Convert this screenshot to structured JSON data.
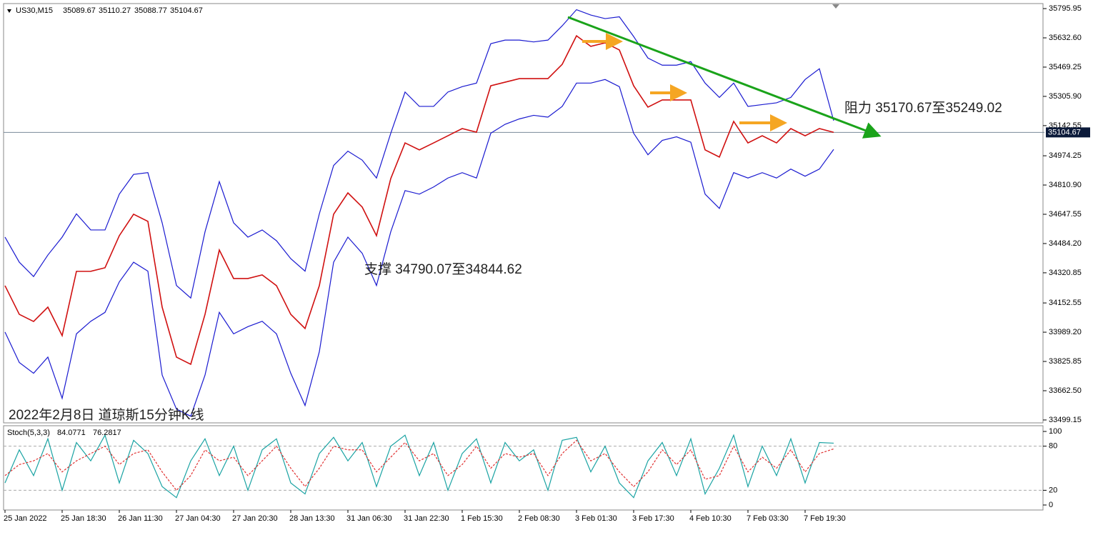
{
  "chart_data": [
    {
      "type": "line",
      "symbol": "US30,M15",
      "ohlc": [
        35089.67,
        35110.27,
        35088.77,
        35104.67
      ],
      "annotations": [
        "阻力 35170.67至35249.02",
        "支撑 34790.07至34844.62",
        "2022年2月8日 道琼斯15分钟K线"
      ],
      "current_price": 35104.67,
      "categories": [
        "25 Jan 2022",
        null,
        null,
        null,
        "25 Jan 18:30",
        null,
        null,
        null,
        "26 Jan 11:30",
        null,
        null,
        null,
        "27 Jan 04:30",
        null,
        null,
        null,
        "27 Jan 20:30",
        null,
        null,
        null,
        "28 Jan 13:30",
        null,
        null,
        null,
        "31 Jan 06:30",
        null,
        null,
        null,
        "31 Jan 22:30",
        null,
        null,
        null,
        "1 Feb 15:30",
        null,
        null,
        null,
        "2 Feb 08:30",
        null,
        null,
        null,
        "3 Feb 01:30",
        null,
        null,
        null,
        "3 Feb 17:30",
        null,
        null,
        null,
        "4 Feb 10:30",
        null,
        null,
        null,
        "7 Feb 03:30",
        null,
        null,
        null,
        "7 Feb 19:30",
        null,
        null
      ],
      "series": [
        {
          "color": "#d01010",
          "values": [
            34249,
            34089,
            34049,
            34129,
            33970,
            34329,
            34329,
            34349,
            34528,
            34648,
            34608,
            34129,
            33850,
            33810,
            34089,
            34448,
            34289,
            34289,
            34309,
            34249,
            34089,
            34010,
            34249,
            34648,
            34767,
            34688,
            34528,
            34847,
            35046,
            35007,
            35046,
            35086,
            35126,
            35106,
            35365,
            35385,
            35405,
            35405,
            35405,
            35485,
            35644,
            35585,
            35605,
            35565,
            35365,
            35246,
            35286,
            35286,
            35286,
            35007,
            34967,
            35166,
            35046,
            35086,
            35046,
            35126,
            35086,
            35126,
            35105
          ]
        },
        {
          "color": "#1a1ad0",
          "values": [
            34520,
            34380,
            34300,
            34420,
            34520,
            34650,
            34560,
            34560,
            34760,
            34870,
            34880,
            34600,
            34250,
            34180,
            34550,
            34830,
            34600,
            34520,
            34560,
            34500,
            34400,
            34330,
            34650,
            34920,
            35000,
            34950,
            34850,
            35100,
            35330,
            35250,
            35250,
            35330,
            35360,
            35380,
            35600,
            35620,
            35620,
            35610,
            35620,
            35700,
            35790,
            35760,
            35740,
            35750,
            35640,
            35520,
            35480,
            35480,
            35500,
            35380,
            35300,
            35380,
            35250,
            35260,
            35270,
            35300,
            35400,
            35460,
            35170
          ]
        },
        {
          "color": "#1a1ad0",
          "values": [
            33990,
            33820,
            33760,
            33850,
            33620,
            33980,
            34050,
            34100,
            34270,
            34380,
            34330,
            33750,
            33560,
            33520,
            33750,
            34100,
            33980,
            34020,
            34050,
            33980,
            33760,
            33580,
            33880,
            34380,
            34520,
            34430,
            34250,
            34550,
            34780,
            34760,
            34800,
            34850,
            34880,
            34850,
            35100,
            35150,
            35180,
            35200,
            35190,
            35250,
            35380,
            35380,
            35400,
            35360,
            35100,
            34980,
            35060,
            35080,
            35050,
            34760,
            34680,
            34880,
            34850,
            34880,
            34850,
            34900,
            34860,
            34900,
            35010
          ]
        }
      ],
      "ylim": [
        33483,
        35824
      ],
      "yticks": [
        35795.95,
        {
          "value": 35632.6,
          "label": "35632.60"
        },
        35469.25,
        {
          "value": 35305.9,
          "label": "35305.90"
        },
        35142.55,
        34974.25,
        {
          "value": 34810.9,
          "label": "34810.90"
        },
        34647.55,
        {
          "value": 34484.2,
          "label": "34484.20"
        },
        34320.85,
        34152.55,
        {
          "value": 33989.2,
          "label": "33989.20"
        },
        33825.85,
        {
          "value": 33662.5,
          "label": "33662.50"
        },
        33499.15
      ]
    },
    {
      "type": "line",
      "title": "Stoch(5,3,3)",
      "readings": [
        84.0771,
        76.2817
      ],
      "series": [
        {
          "color": "#1aa3a3",
          "values": [
            30,
            75,
            40,
            90,
            20,
            85,
            60,
            95,
            30,
            88,
            70,
            25,
            10,
            60,
            90,
            40,
            80,
            20,
            75,
            90,
            30,
            15,
            70,
            92,
            60,
            85,
            25,
            80,
            95,
            40,
            85,
            20,
            70,
            90,
            30,
            85,
            60,
            75,
            20,
            88,
            92,
            45,
            80,
            30,
            10,
            60,
            85,
            40,
            90,
            15,
            50,
            95,
            25,
            80,
            40,
            90,
            30,
            85,
            84.0771
          ]
        },
        {
          "color": "#e03030",
          "values": [
            40,
            55,
            60,
            70,
            45,
            60,
            70,
            80,
            55,
            70,
            75,
            45,
            20,
            40,
            75,
            60,
            65,
            40,
            60,
            80,
            50,
            25,
            50,
            80,
            75,
            75,
            45,
            65,
            85,
            60,
            70,
            40,
            55,
            80,
            50,
            70,
            65,
            70,
            40,
            70,
            88,
            60,
            70,
            45,
            25,
            45,
            75,
            55,
            75,
            35,
            40,
            80,
            45,
            65,
            50,
            75,
            45,
            70,
            76.2817
          ]
        }
      ],
      "levels": [
        80,
        20
      ],
      "ylim": [
        -6.8,
        107.8
      ],
      "yticks": [
        100,
        80,
        20,
        0
      ]
    }
  ]
}
